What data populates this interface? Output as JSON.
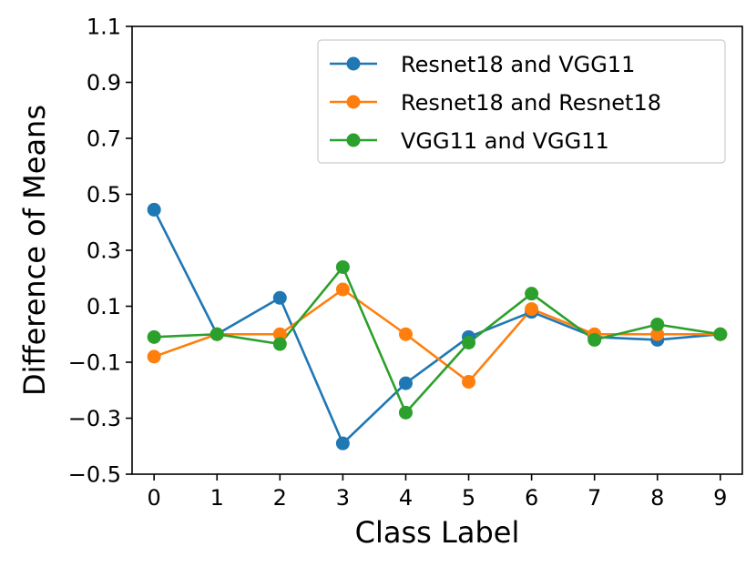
{
  "chart_data": {
    "type": "line",
    "title": "",
    "xlabel": "Class Label",
    "ylabel": "Difference of Means",
    "x": [
      0,
      1,
      2,
      3,
      4,
      5,
      6,
      7,
      8,
      9
    ],
    "xticks": [
      "0",
      "1",
      "2",
      "3",
      "4",
      "5",
      "6",
      "7",
      "8",
      "9"
    ],
    "yticks": [
      "−0.5",
      "−0.3",
      "−0.1",
      "0.1",
      "0.3",
      "0.5",
      "0.7",
      "0.9",
      "1.1"
    ],
    "ytick_values": [
      -0.5,
      -0.3,
      -0.1,
      0.1,
      0.3,
      0.5,
      0.7,
      0.9,
      1.1
    ],
    "xlim": [
      -0.35,
      9.35
    ],
    "ylim": [
      -0.5,
      1.1
    ],
    "grid": false,
    "legend_position": "top-right",
    "series": [
      {
        "name": "Resnet18 and VGG11",
        "color": "#1f77b4",
        "values": [
          0.445,
          0.0,
          0.13,
          -0.39,
          -0.175,
          -0.01,
          0.08,
          -0.01,
          -0.02,
          0.0
        ]
      },
      {
        "name": "Resnet18 and Resnet18",
        "color": "#ff7f0e",
        "values": [
          -0.08,
          0.0,
          0.0,
          0.16,
          0.0,
          -0.17,
          0.09,
          0.0,
          0.0,
          0.0
        ]
      },
      {
        "name": "VGG11 and VGG11",
        "color": "#2ca02c",
        "values": [
          -0.01,
          0.0,
          -0.035,
          0.24,
          -0.28,
          -0.03,
          0.145,
          -0.02,
          0.035,
          0.0
        ]
      }
    ]
  }
}
